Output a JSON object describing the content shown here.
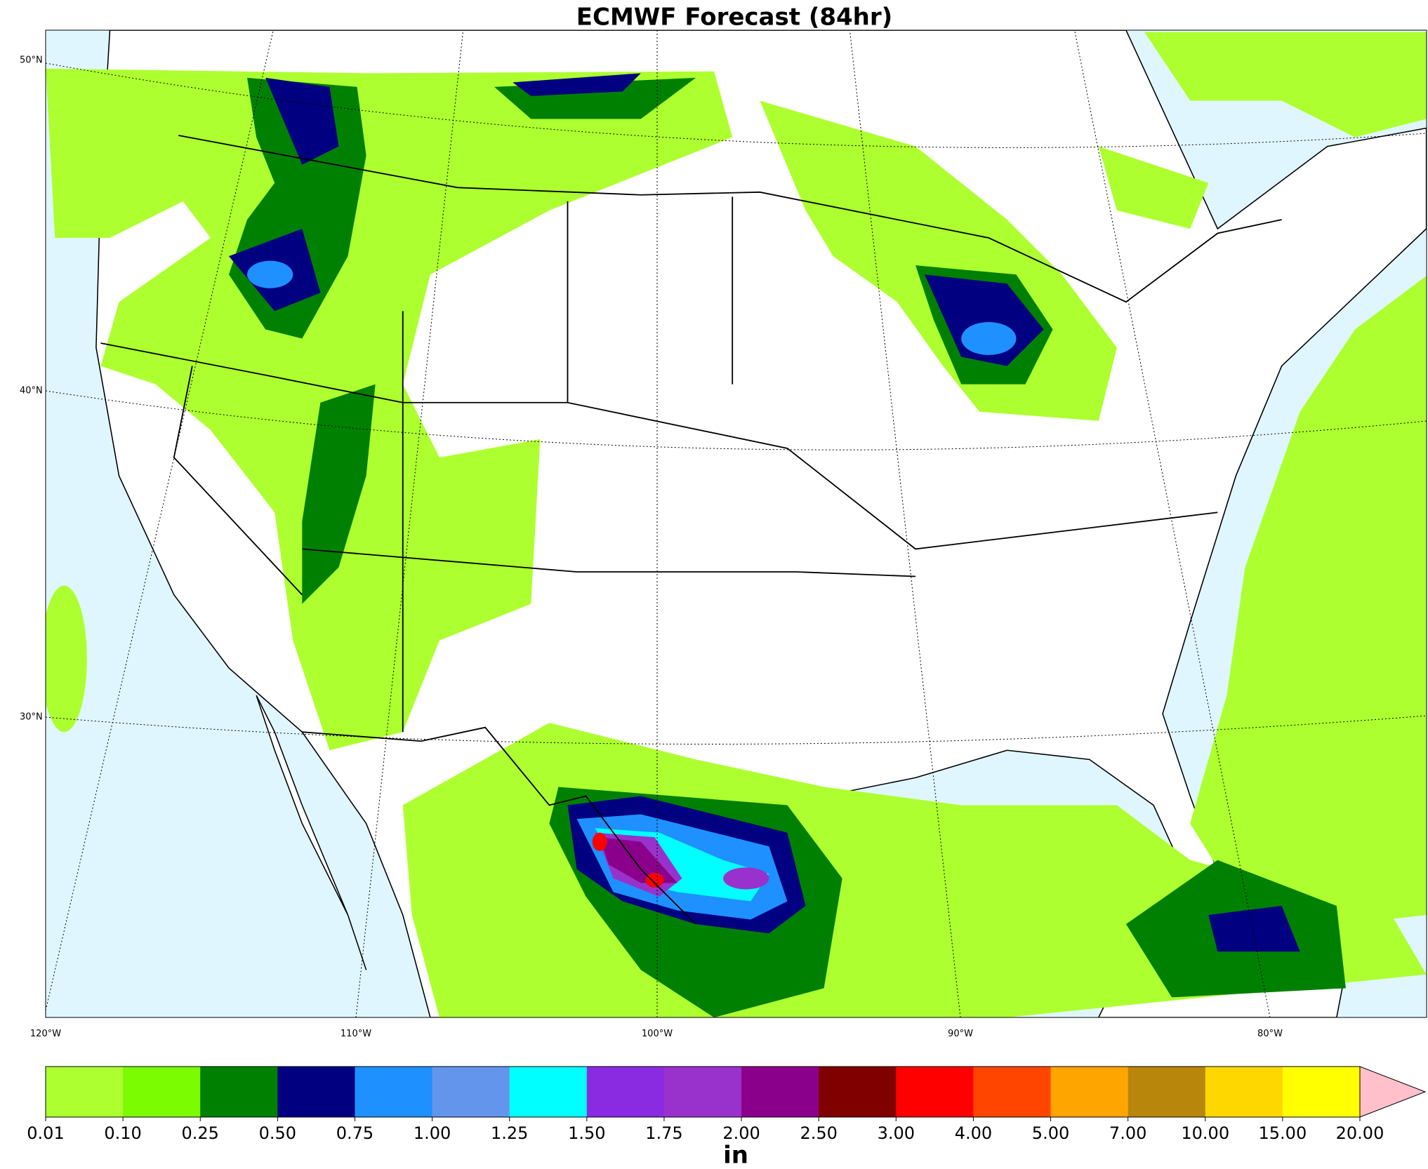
{
  "title": "ECMWF Forecast (84hr)",
  "map": {
    "lat_labels": [
      "50°N",
      "40°N",
      "30°N"
    ],
    "lon_labels": [
      "120°W",
      "110°W",
      "100°W",
      "90°W",
      "80°W"
    ]
  },
  "colorbar": {
    "unit": "in",
    "levels": [
      {
        "value": 0.01,
        "label": "0.01"
      },
      {
        "value": 0.1,
        "label": "0.10"
      },
      {
        "value": 0.25,
        "label": "0.25"
      },
      {
        "value": 0.5,
        "label": "0.50"
      },
      {
        "value": 0.75,
        "label": "0.75"
      },
      {
        "value": 1,
        "label": "1.00"
      },
      {
        "value": 1.25,
        "label": "1.25"
      },
      {
        "value": 1.5,
        "label": "1.50"
      },
      {
        "value": 1.75,
        "label": "1.75"
      },
      {
        "value": 2,
        "label": "2.00"
      },
      {
        "value": 2.5,
        "label": "2.50"
      },
      {
        "value": 3,
        "label": "3.00"
      },
      {
        "value": 4,
        "label": "4.00"
      },
      {
        "value": 5,
        "label": "5.00"
      },
      {
        "value": 7,
        "label": "7.00"
      },
      {
        "value": 10,
        "label": "10.00"
      },
      {
        "value": 15,
        "label": "15.00"
      },
      {
        "value": 20,
        "label": "20.00"
      }
    ],
    "colors": [
      "#adff2f",
      "#7cfc00",
      "#008000",
      "#000080",
      "#1e90ff",
      "#6495ed",
      "#00ffff",
      "#8a2be2",
      "#9932cc",
      "#8b008b",
      "#800000",
      "#ff0000",
      "#ff4500",
      "#ffa500",
      "#b8860b",
      "#ffd700",
      "#ffff00"
    ],
    "extend_color": "#ffc0cb"
  }
}
